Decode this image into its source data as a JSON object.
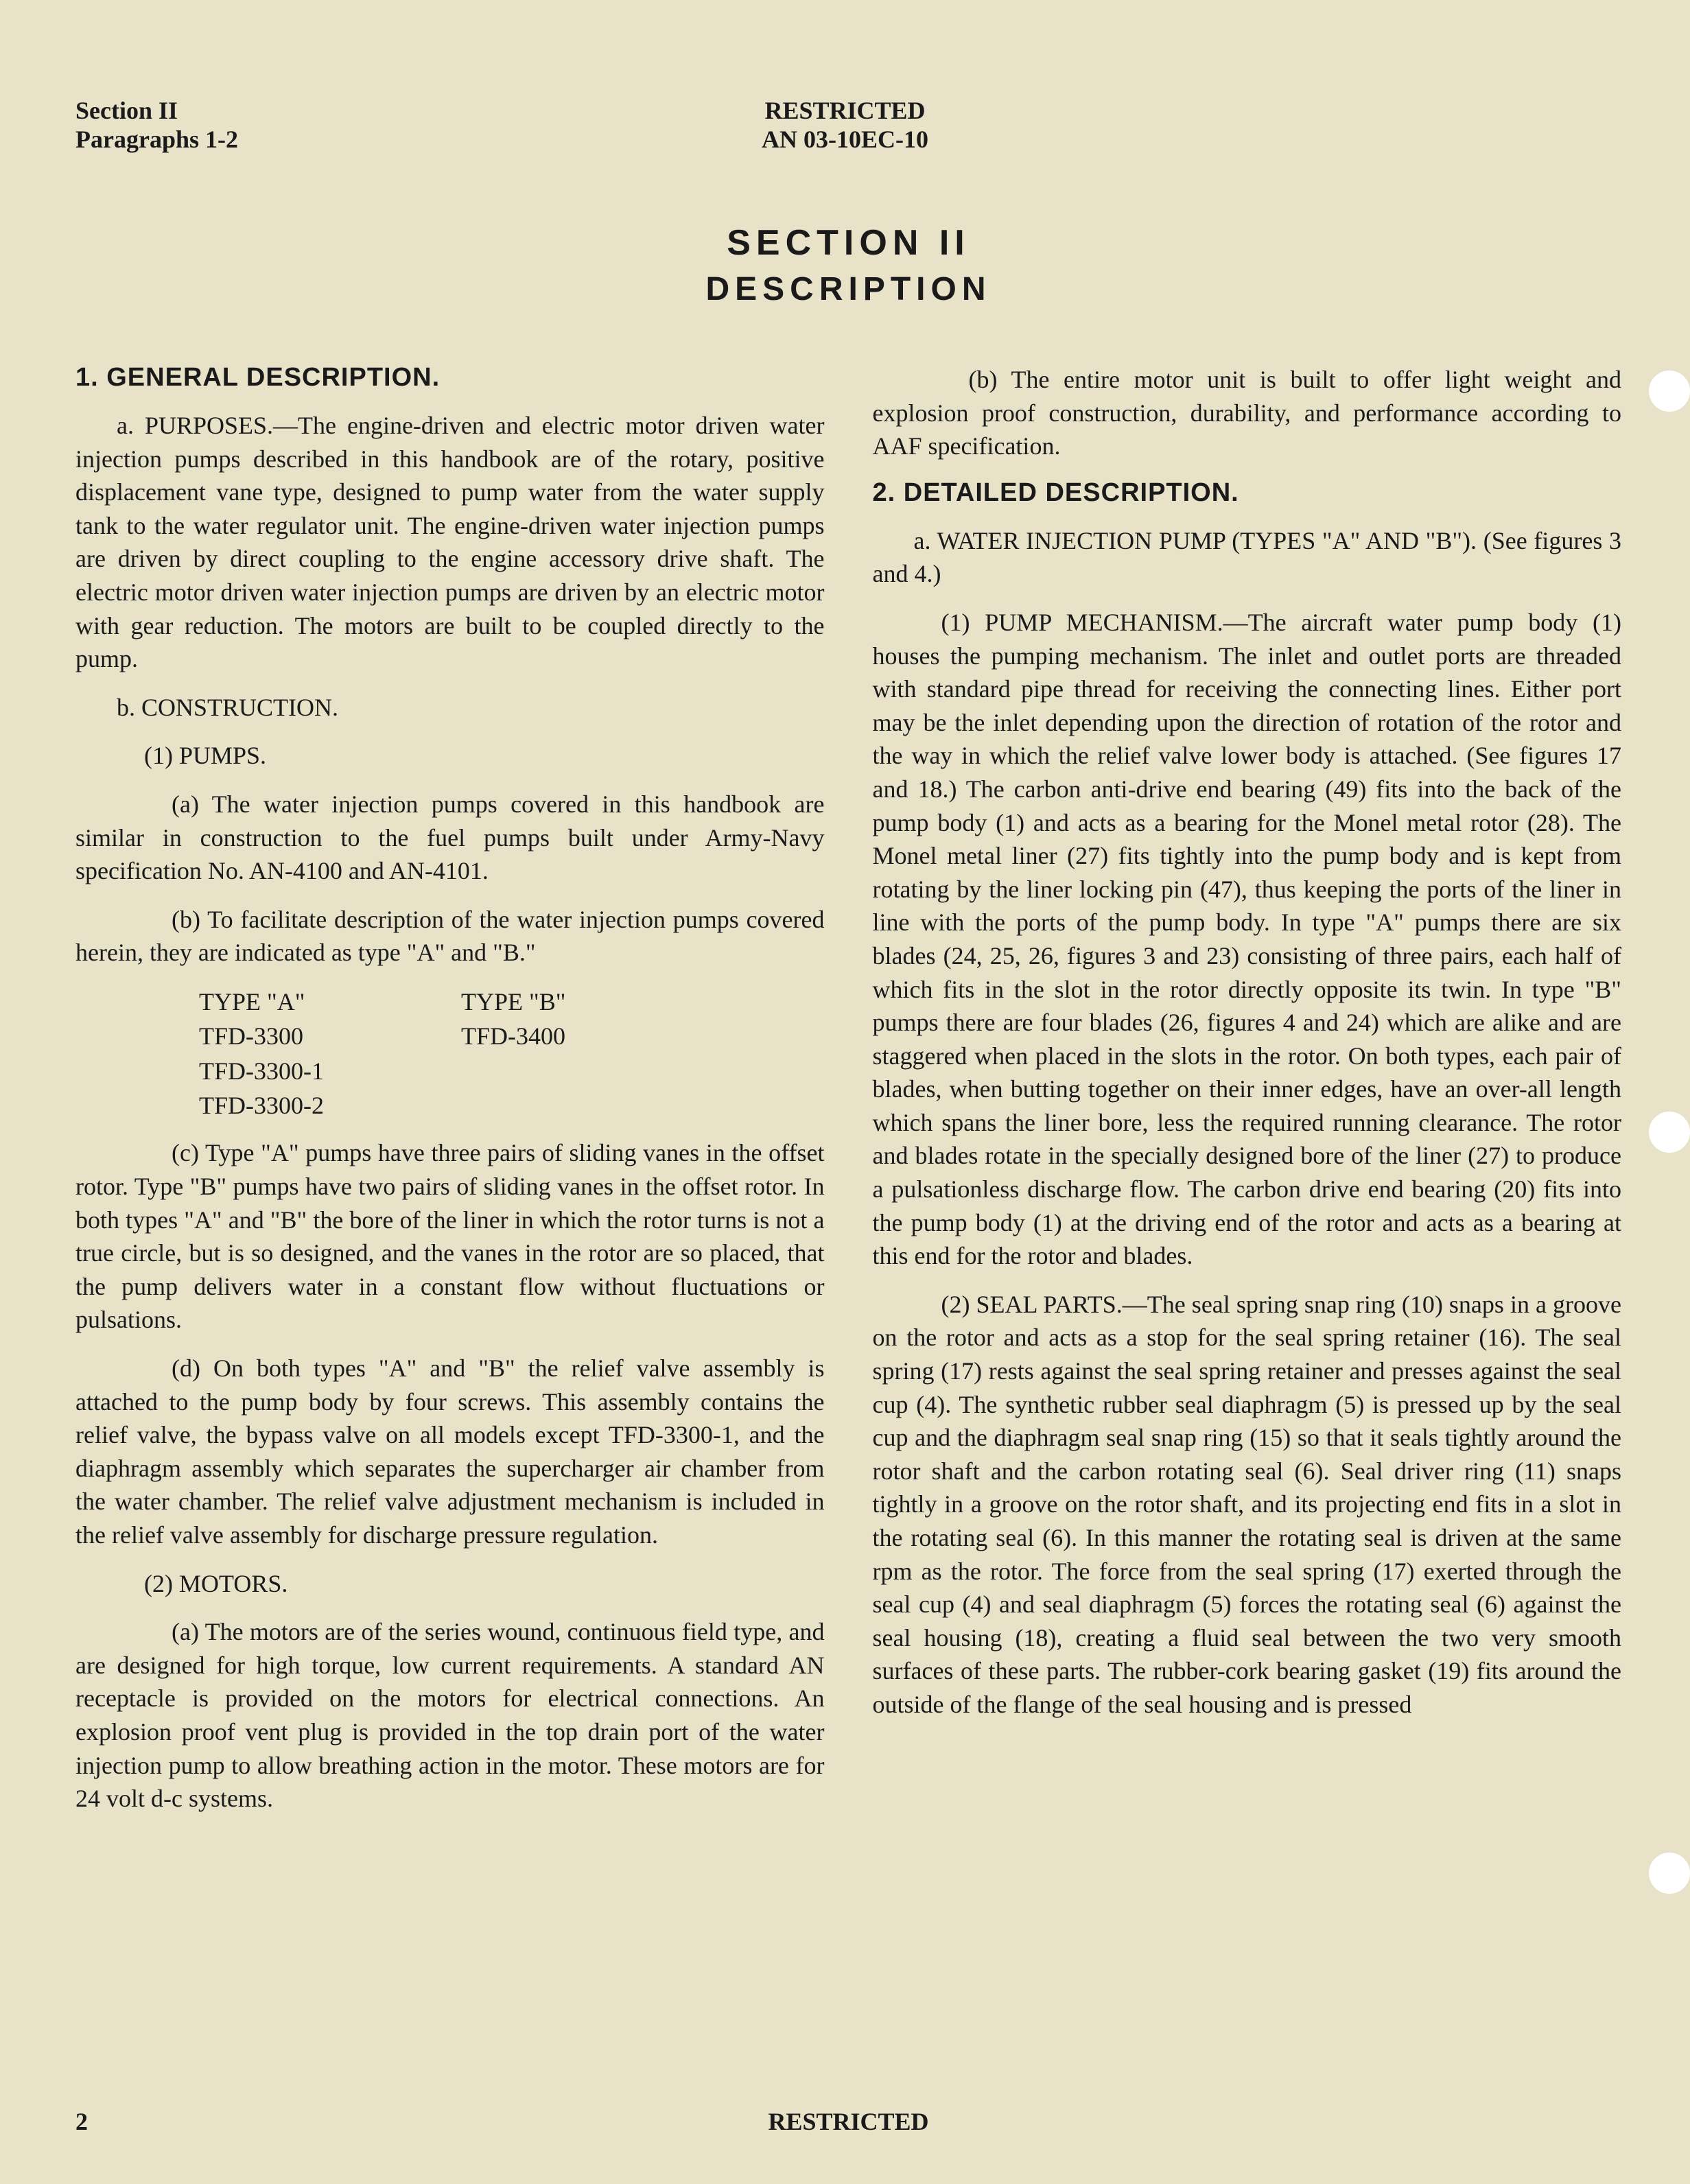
{
  "header": {
    "section": "Section II",
    "paragraphs": "Paragraphs 1-2",
    "restricted": "RESTRICTED",
    "doc_no": "AN 03-10EC-10"
  },
  "title": {
    "main": "SECTION II",
    "sub": "DESCRIPTION"
  },
  "col1": {
    "h1": "1. GENERAL DESCRIPTION.",
    "p_a": "a. PURPOSES.—The engine-driven and electric motor driven water injection pumps described in this handbook are of the rotary, positive displacement vane type, designed to pump water from the water supply tank to the water regulator unit. The engine-driven water injection pumps are driven by direct coupling to the engine accessory drive shaft. The electric motor driven water injection pumps are driven by an electric motor with gear reduction. The motors are built to be coupled directly to the pump.",
    "p_b": "b. CONSTRUCTION.",
    "p_1": "(1) PUMPS.",
    "p_1a": "(a) The water injection pumps covered in this handbook are similar in construction to the fuel pumps built under Army-Navy specification No. AN-4100 and AN-4101.",
    "p_1b": "(b) To facilitate description of the water injection pumps covered herein, they are indicated as type \"A\" and \"B.\"",
    "type_a_head": "TYPE \"A\"",
    "type_b_head": "TYPE \"B\"",
    "type_a_1": "TFD-3300",
    "type_a_2": "TFD-3300-1",
    "type_a_3": "TFD-3300-2",
    "type_b_1": "TFD-3400",
    "p_1c": "(c) Type \"A\" pumps have three pairs of sliding vanes in the offset rotor. Type \"B\" pumps have two pairs of sliding vanes in the offset rotor. In both types \"A\" and \"B\" the bore of the liner in which the rotor turns is not a true circle, but is so designed, and the vanes in the rotor are so placed, that the pump delivers water in a constant flow without fluctuations or pulsations.",
    "p_1d": "(d) On both types \"A\" and \"B\" the relief valve assembly is attached to the pump body by four screws. This assembly contains the relief valve, the bypass valve on all models except TFD-3300-1, and the diaphragm assembly which separates the supercharger air chamber from the water chamber. The relief valve adjustment mechanism is included in the relief valve assembly for discharge pressure regulation.",
    "p_2": "(2) MOTORS.",
    "p_2a": "(a) The motors are of the series wound, continuous field type, and are designed for high torque, low current requirements. A standard AN receptacle is provided on the motors for electrical connections. An explosion proof vent plug is provided in the top drain port of the water injection pump to allow breathing action in the motor. These motors are for 24 volt d-c systems."
  },
  "col2": {
    "p_2b": "(b) The entire motor unit is built to offer light weight and explosion proof construction, durability, and performance according to AAF specification.",
    "h2": "2. DETAILED DESCRIPTION.",
    "p_a": "a. WATER INJECTION PUMP (TYPES \"A\" AND \"B\"). (See figures 3 and 4.)",
    "p_1": "(1) PUMP MECHANISM.—The aircraft water pump body (1) houses the pumping mechanism. The inlet and outlet ports are threaded with standard pipe thread for receiving the connecting lines. Either port may be the inlet depending upon the direction of rotation of the rotor and the way in which the relief valve lower body is attached. (See figures 17 and 18.) The carbon anti-drive end bearing (49) fits into the back of the pump body (1) and acts as a bearing for the Monel metal rotor (28). The Monel metal liner (27) fits tightly into the pump body and is kept from rotating by the liner locking pin (47), thus keeping the ports of the liner in line with the ports of the pump body. In type \"A\" pumps there are six blades (24, 25, 26, figures 3 and 23) consisting of three pairs, each half of which fits in the slot in the rotor directly opposite its twin. In type \"B\" pumps there are four blades (26, figures 4 and 24) which are alike and are staggered when placed in the slots in the rotor. On both types, each pair of blades, when butting together on their inner edges, have an over-all length which spans the liner bore, less the required running clearance. The rotor and blades rotate in the specially designed bore of the liner (27) to produce a pulsationless discharge flow. The carbon drive end bearing (20) fits into the pump body (1) at the driving end of the rotor and acts as a bearing at this end for the rotor and blades.",
    "p_2": "(2) SEAL PARTS.—The seal spring snap ring (10) snaps in a groove on the rotor and acts as a stop for the seal spring retainer (16). The seal spring (17) rests against the seal spring retainer and presses against the seal cup (4). The synthetic rubber seal diaphragm (5) is pressed up by the seal cup and the diaphragm seal snap ring (15) so that it seals tightly around the rotor shaft and the carbon rotating seal (6). Seal driver ring (11) snaps tightly in a groove on the rotor shaft, and its projecting end fits in a slot in the rotating seal (6). In this manner the rotating seal is driven at the same rpm as the rotor. The force from the seal spring (17) exerted through the seal cup (4) and seal diaphragm (5) forces the rotating seal (6) against the seal housing (18), creating a fluid seal between the two very smooth surfaces of these parts. The rubber-cork bearing gasket (19) fits around the outside of the flange of the seal housing and is pressed"
  },
  "footer": {
    "page": "2",
    "restricted": "RESTRICTED"
  }
}
